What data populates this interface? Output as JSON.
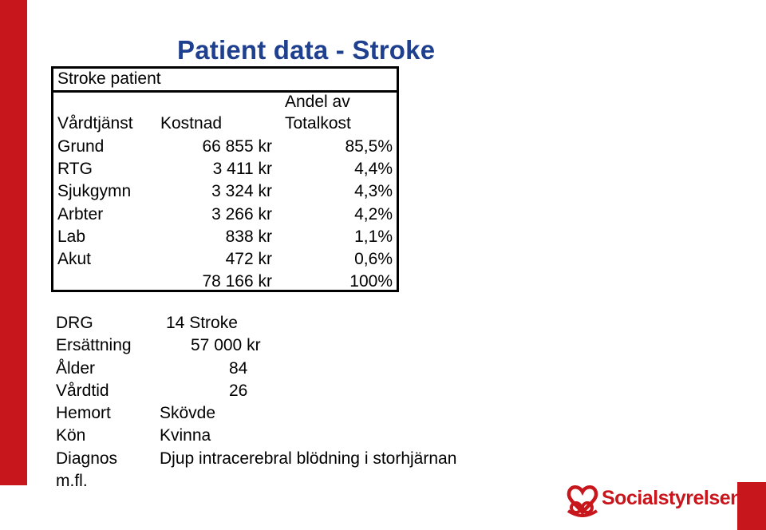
{
  "title": "Patient data - Stroke",
  "table": {
    "caption": "Stroke patient",
    "headers": {
      "col1": "Vårdtjänst",
      "col2": "Kostnad",
      "col3_line1": "Andel av",
      "col3_line2": "Totalkost"
    },
    "rows": [
      {
        "service": "Grund",
        "cost": "66 855 kr",
        "share": "85,5%"
      },
      {
        "service": "RTG",
        "cost": "3 411 kr",
        "share": "4,4%"
      },
      {
        "service": "Sjukgymn",
        "cost": "3 324 kr",
        "share": "4,3%"
      },
      {
        "service": "Arbter",
        "cost": "3 266 kr",
        "share": "4,2%"
      },
      {
        "service": "Lab",
        "cost": "838 kr",
        "share": "1,1%"
      },
      {
        "service": "Akut",
        "cost": "472 kr",
        "share": "0,6%"
      }
    ],
    "total": {
      "cost": "78 166 kr",
      "share": "100%"
    }
  },
  "info": {
    "drg_label": "DRG",
    "drg_value": "14 Stroke",
    "ersattning_label": "Ersättning",
    "ersattning_value": "57 000 kr",
    "alder_label": "Ålder",
    "alder_value": "84",
    "vardtid_label": "Vårdtid",
    "vardtid_value": "26",
    "hemort_label": "Hemort",
    "hemort_value": "Skövde",
    "kon_label": "Kön",
    "kon_value": "Kvinna",
    "diagnos_label": "Diagnos",
    "diagnos_value": "Djup intracerebral blödning i storhjärnan",
    "mfl": "m.fl."
  },
  "logo": {
    "text": "Socialstyrelsen",
    "icon": "socialstyrelsen-heart-logo-icon"
  },
  "colors": {
    "accent_red": "#c8161d",
    "title_blue": "#1f3f8f"
  }
}
